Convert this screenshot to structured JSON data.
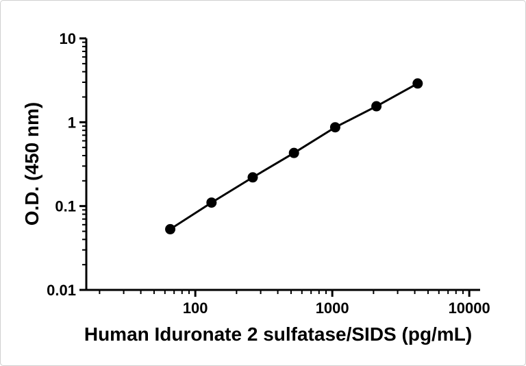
{
  "chart_data": {
    "type": "line",
    "title": "",
    "xlabel": "Human Iduronate 2 sulfatase/SIDS (pg/mL)",
    "ylabel": "O.D. (450 nm)",
    "xscale": "log",
    "yscale": "log",
    "xlim": [
      16,
      12000
    ],
    "ylim": [
      0.01,
      10
    ],
    "grid": false,
    "legend": "none",
    "x_ticks": [
      {
        "value": 100,
        "label": "100"
      },
      {
        "value": 1000,
        "label": "1000"
      },
      {
        "value": 10000,
        "label": "10000"
      }
    ],
    "y_ticks": [
      {
        "value": 10,
        "label": "10"
      },
      {
        "value": 1,
        "label": "1"
      },
      {
        "value": 0.1,
        "label": "0.1"
      },
      {
        "value": 0.01,
        "label": "0.01"
      }
    ],
    "series": [
      {
        "name": "standard-curve",
        "x": [
          65.6,
          131.3,
          262.5,
          525,
          1050,
          2100,
          4200
        ],
        "y": [
          0.053,
          0.11,
          0.22,
          0.43,
          0.87,
          1.55,
          2.9
        ],
        "marker": "filled-circle",
        "marker_size": 7.5,
        "line_width": 3,
        "color": "#000000"
      }
    ],
    "colors": {
      "axis": "#000000",
      "text": "#000000",
      "background": "#ffffff",
      "frame_border": "#cfcfcf"
    }
  }
}
